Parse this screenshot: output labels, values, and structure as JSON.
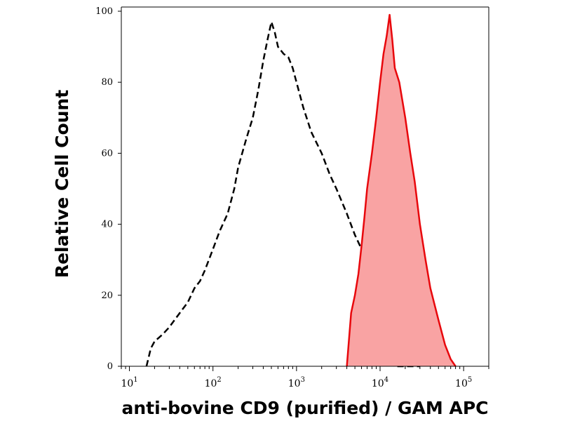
{
  "chart_data": {
    "type": "area",
    "xlabel": "anti-bovine CD9 (purified) / GAM APC",
    "ylabel": "Relative Cell Count",
    "x_scale": "log",
    "xlim": [
      8,
      200000
    ],
    "ylim": [
      0,
      100
    ],
    "grid": false,
    "legend": "none",
    "y_ticks": [
      {
        "value": 0,
        "label": "0"
      },
      {
        "value": 20,
        "label": "20"
      },
      {
        "value": 40,
        "label": "40"
      },
      {
        "value": 60,
        "label": "60"
      },
      {
        "value": 80,
        "label": "80"
      },
      {
        "value": 100,
        "label": "100"
      }
    ],
    "x_ticks": [
      {
        "value": 10,
        "base": "10",
        "exp": "1"
      },
      {
        "value": 100,
        "base": "10",
        "exp": "2"
      },
      {
        "value": 1000,
        "base": "10",
        "exp": "3"
      },
      {
        "value": 10000,
        "base": "10",
        "exp": "4"
      },
      {
        "value": 100000,
        "base": "10",
        "exp": "5"
      }
    ],
    "series": [
      {
        "style": "dashed-line",
        "color": "#000000",
        "points": [
          [
            16,
            0
          ],
          [
            18,
            5
          ],
          [
            20,
            7
          ],
          [
            25,
            9
          ],
          [
            30,
            11
          ],
          [
            40,
            15
          ],
          [
            50,
            18
          ],
          [
            60,
            22
          ],
          [
            70,
            24
          ],
          [
            80,
            27
          ],
          [
            100,
            33
          ],
          [
            120,
            38
          ],
          [
            150,
            43
          ],
          [
            180,
            50
          ],
          [
            200,
            56
          ],
          [
            250,
            64
          ],
          [
            300,
            70
          ],
          [
            350,
            78
          ],
          [
            400,
            86
          ],
          [
            450,
            92
          ],
          [
            500,
            97
          ],
          [
            550,
            94
          ],
          [
            600,
            90
          ],
          [
            700,
            88
          ],
          [
            800,
            87
          ],
          [
            900,
            84
          ],
          [
            1000,
            80
          ],
          [
            1200,
            73
          ],
          [
            1500,
            66
          ],
          [
            2000,
            60
          ],
          [
            2500,
            54
          ],
          [
            3000,
            50
          ],
          [
            4000,
            43
          ],
          [
            5000,
            37
          ],
          [
            6000,
            33
          ],
          [
            7000,
            27
          ],
          [
            8000,
            20
          ],
          [
            9000,
            15
          ],
          [
            10000,
            8
          ],
          [
            11000,
            4
          ],
          [
            12000,
            1
          ],
          [
            15000,
            0
          ],
          [
            30000,
            0
          ]
        ]
      },
      {
        "style": "filled-area",
        "color": "#e8070c",
        "fill": "#f9a3a3",
        "points": [
          [
            4000,
            0
          ],
          [
            4500,
            15
          ],
          [
            5000,
            20
          ],
          [
            5500,
            26
          ],
          [
            6000,
            34
          ],
          [
            6500,
            42
          ],
          [
            7000,
            50
          ],
          [
            8000,
            60
          ],
          [
            9000,
            70
          ],
          [
            10000,
            80
          ],
          [
            11000,
            88
          ],
          [
            12000,
            93
          ],
          [
            13000,
            99
          ],
          [
            14000,
            92
          ],
          [
            15000,
            84
          ],
          [
            17000,
            80
          ],
          [
            20000,
            70
          ],
          [
            23000,
            60
          ],
          [
            26000,
            52
          ],
          [
            30000,
            40
          ],
          [
            35000,
            30
          ],
          [
            40000,
            22
          ],
          [
            50000,
            13
          ],
          [
            60000,
            6
          ],
          [
            70000,
            2
          ],
          [
            80000,
            0
          ]
        ]
      }
    ]
  }
}
